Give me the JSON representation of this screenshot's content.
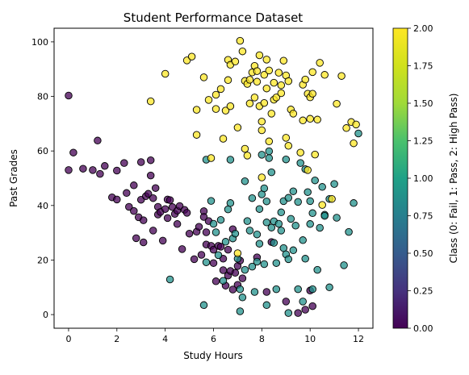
{
  "chart_data": {
    "type": "scatter",
    "title": "Student Performance Dataset",
    "xlabel": "Study Hours",
    "ylabel": "Past Grades",
    "xlim": [
      -0.6,
      12.6
    ],
    "ylim": [
      -5,
      105
    ],
    "xticks": [
      0,
      2,
      4,
      6,
      8,
      10,
      12
    ],
    "yticks": [
      0,
      20,
      40,
      60,
      80,
      100
    ],
    "grid": false,
    "colorbar": {
      "label": "Class (0: Fail, 1: Pass, 2: High Pass)",
      "range": [
        0,
        2
      ],
      "ticks": [
        "0.00",
        "0.25",
        "0.50",
        "0.75",
        "1.00",
        "1.25",
        "1.50",
        "1.75",
        "2.00"
      ]
    },
    "series": [
      {
        "class": 0,
        "color": "#440154",
        "points": [
          [
            0.0,
            80.3
          ],
          [
            0.0,
            53
          ],
          [
            0.2,
            59.4
          ],
          [
            0.6,
            53.5
          ],
          [
            1.0,
            53
          ],
          [
            1.2,
            63.8
          ],
          [
            1.3,
            51.6
          ],
          [
            1.5,
            54.5
          ],
          [
            1.8,
            43
          ],
          [
            2.0,
            52.8
          ],
          [
            2.0,
            42.2
          ],
          [
            2.3,
            55.6
          ],
          [
            2.4,
            44.6
          ],
          [
            2.5,
            39.5
          ],
          [
            2.7,
            47.4
          ],
          [
            2.7,
            38
          ],
          [
            2.8,
            28
          ],
          [
            2.9,
            35.7
          ],
          [
            3.0,
            55.9
          ],
          [
            3.0,
            42.1
          ],
          [
            3.1,
            34.6
          ],
          [
            3.1,
            26.5
          ],
          [
            3.2,
            43.4
          ],
          [
            3.3,
            44.3
          ],
          [
            3.4,
            56.6
          ],
          [
            3.4,
            51
          ],
          [
            3.5,
            42.7
          ],
          [
            3.5,
            30.8
          ],
          [
            3.6,
            46.4
          ],
          [
            3.7,
            39.5
          ],
          [
            3.7,
            36.7
          ],
          [
            3.8,
            37.6
          ],
          [
            3.9,
            27.1
          ],
          [
            4.0,
            38.7
          ],
          [
            4.1,
            42.2
          ],
          [
            4.1,
            35.4
          ],
          [
            4.2,
            42
          ],
          [
            4.3,
            39.4
          ],
          [
            4.4,
            36.9
          ],
          [
            4.5,
            33.2
          ],
          [
            4.5,
            38.1
          ],
          [
            4.6,
            39.8
          ],
          [
            4.7,
            24
          ],
          [
            4.8,
            38.4
          ],
          [
            4.9,
            37.3
          ],
          [
            5.0,
            29.7
          ],
          [
            5.2,
            20.3
          ],
          [
            5.3,
            30.4
          ],
          [
            5.4,
            32.2
          ],
          [
            5.5,
            21.9
          ],
          [
            5.6,
            37.9
          ],
          [
            5.6,
            35.8
          ],
          [
            5.7,
            25.7
          ],
          [
            5.7,
            30.2
          ],
          [
            5.8,
            34.3
          ],
          [
            5.9,
            25.2
          ],
          [
            6.0,
            23.8
          ],
          [
            6.0,
            18.9
          ],
          [
            6.1,
            12.2
          ],
          [
            6.2,
            25.2
          ],
          [
            6.3,
            24.9
          ],
          [
            6.4,
            20.5
          ],
          [
            6.4,
            16.3
          ],
          [
            6.5,
            10.6
          ],
          [
            6.6,
            14.3
          ],
          [
            6.6,
            23.8
          ],
          [
            6.7,
            16
          ],
          [
            6.8,
            31.3
          ],
          [
            6.8,
            9.2
          ],
          [
            6.9,
            15.3
          ],
          [
            7.0,
            10.9
          ],
          [
            7.0,
            17.8
          ],
          [
            7.1,
            19.8
          ],
          [
            7.2,
            13.3
          ],
          [
            7.8,
            21
          ],
          [
            8.2,
            8.3
          ],
          [
            8.4,
            26.6
          ],
          [
            9.0,
            4.8
          ],
          [
            9.5,
            0.6
          ],
          [
            10.0,
            8.8
          ],
          [
            10.1,
            3.1
          ],
          [
            9.8,
            1.8
          ]
        ]
      },
      {
        "class": 1,
        "color": "#21918c",
        "points": [
          [
            4.2,
            12.9
          ],
          [
            5.6,
            3.5
          ],
          [
            5.7,
            56.8
          ],
          [
            5.7,
            19.2
          ],
          [
            5.9,
            41.7
          ],
          [
            6.0,
            33.3
          ],
          [
            6.1,
            30.2
          ],
          [
            6.2,
            21.8
          ],
          [
            6.3,
            34.7
          ],
          [
            6.4,
            12.4
          ],
          [
            6.5,
            26.7
          ],
          [
            6.6,
            38.6
          ],
          [
            6.7,
            40.9
          ],
          [
            6.7,
            56.8
          ],
          [
            6.8,
            27.9
          ],
          [
            6.9,
            29.7
          ],
          [
            7.0,
            20.5
          ],
          [
            7.1,
            1.2
          ],
          [
            7.1,
            9.3
          ],
          [
            7.2,
            6.3
          ],
          [
            7.3,
            48.9
          ],
          [
            7.3,
            16.4
          ],
          [
            7.4,
            34.3
          ],
          [
            7.5,
            30.8
          ],
          [
            7.6,
            42.7
          ],
          [
            7.6,
            17.6
          ],
          [
            7.7,
            8.3
          ],
          [
            7.8,
            29.4
          ],
          [
            7.8,
            19.4
          ],
          [
            7.9,
            26
          ],
          [
            7.9,
            38.7
          ],
          [
            8.0,
            44.1
          ],
          [
            8.0,
            58.6
          ],
          [
            8.1,
            46.3
          ],
          [
            8.1,
            18.5
          ],
          [
            8.2,
            33.8
          ],
          [
            8.2,
            41.5
          ],
          [
            8.2,
            3.5
          ],
          [
            8.3,
            57.4
          ],
          [
            8.3,
            59.9
          ],
          [
            8.4,
            52.2
          ],
          [
            8.4,
            31.9
          ],
          [
            8.5,
            34.2
          ],
          [
            8.5,
            26.3
          ],
          [
            8.6,
            9.3
          ],
          [
            8.6,
            18.9
          ],
          [
            8.7,
            33.3
          ],
          [
            8.8,
            37.5
          ],
          [
            8.8,
            30.8
          ],
          [
            8.9,
            24.4
          ],
          [
            8.9,
            41.6
          ],
          [
            9.0,
            56.9
          ],
          [
            9.0,
            22.1
          ],
          [
            9.1,
            20.3
          ],
          [
            9.1,
            42.8
          ],
          [
            9.1,
            0.6
          ],
          [
            9.2,
            35.1
          ],
          [
            9.3,
            45.2
          ],
          [
            9.3,
            23.6
          ],
          [
            9.4,
            32.6
          ],
          [
            9.5,
            41.3
          ],
          [
            9.5,
            9.3
          ],
          [
            9.6,
            55.6
          ],
          [
            9.7,
            27.3
          ],
          [
            9.7,
            4.8
          ],
          [
            9.8,
            53.3
          ],
          [
            9.8,
            20.5
          ],
          [
            9.9,
            44.9
          ],
          [
            10.0,
            41.6
          ],
          [
            10.0,
            33.2
          ],
          [
            10.1,
            9.3
          ],
          [
            10.1,
            37.2
          ],
          [
            10.2,
            49.2
          ],
          [
            10.3,
            16.4
          ],
          [
            10.4,
            31.8
          ],
          [
            10.5,
            46.8
          ],
          [
            10.6,
            36.6
          ],
          [
            10.6,
            36.2
          ],
          [
            10.8,
            42.4
          ],
          [
            10.8,
            10
          ],
          [
            11.0,
            47.9
          ],
          [
            11.1,
            35.5
          ],
          [
            11.4,
            18.1
          ],
          [
            11.6,
            30.3
          ],
          [
            11.8,
            40.9
          ],
          [
            12.0,
            66.4
          ]
        ]
      },
      {
        "class": 2,
        "color": "#fde725",
        "points": [
          [
            3.4,
            78.2
          ],
          [
            4.0,
            88.3
          ],
          [
            4.9,
            93.2
          ],
          [
            5.1,
            94.6
          ],
          [
            5.3,
            75.1
          ],
          [
            5.3,
            65.9
          ],
          [
            5.6,
            87
          ],
          [
            5.8,
            78.7
          ],
          [
            5.9,
            57.4
          ],
          [
            6.1,
            80.6
          ],
          [
            6.1,
            75.4
          ],
          [
            6.3,
            82.7
          ],
          [
            6.4,
            64.5
          ],
          [
            6.5,
            74.8
          ],
          [
            6.6,
            86
          ],
          [
            6.6,
            93.4
          ],
          [
            6.7,
            91.6
          ],
          [
            6.7,
            76.4
          ],
          [
            6.9,
            92.8
          ],
          [
            7.0,
            22.5
          ],
          [
            7.0,
            68.6
          ],
          [
            7.1,
            100.4
          ],
          [
            7.2,
            96.5
          ],
          [
            7.3,
            85.7
          ],
          [
            7.3,
            60.8
          ],
          [
            7.4,
            84.6
          ],
          [
            7.4,
            58.3
          ],
          [
            7.5,
            86.1
          ],
          [
            7.5,
            77.4
          ],
          [
            7.6,
            88.8
          ],
          [
            7.7,
            91.2
          ],
          [
            7.7,
            79.6
          ],
          [
            7.8,
            89.3
          ],
          [
            7.8,
            85.4
          ],
          [
            7.9,
            95.1
          ],
          [
            7.9,
            76.4
          ],
          [
            8.0,
            67.6
          ],
          [
            8.0,
            70.8
          ],
          [
            8.0,
            50.3
          ],
          [
            8.1,
            77.6
          ],
          [
            8.1,
            87.9
          ],
          [
            8.2,
            82.9
          ],
          [
            8.2,
            93.5
          ],
          [
            8.3,
            89.5
          ],
          [
            8.3,
            63.5
          ],
          [
            8.4,
            73.7
          ],
          [
            8.5,
            78.8
          ],
          [
            8.5,
            85
          ],
          [
            8.6,
            79.6
          ],
          [
            8.7,
            88.7
          ],
          [
            8.8,
            84.1
          ],
          [
            8.8,
            81.2
          ],
          [
            8.9,
            93.1
          ],
          [
            9.0,
            87.7
          ],
          [
            9.0,
            64.8
          ],
          [
            9.1,
            61.9
          ],
          [
            9.1,
            85.6
          ],
          [
            9.2,
            75.2
          ],
          [
            9.3,
            73.7
          ],
          [
            9.6,
            59.4
          ],
          [
            9.7,
            71.2
          ],
          [
            9.7,
            84.3
          ],
          [
            9.8,
            86.2
          ],
          [
            9.9,
            53
          ],
          [
            9.9,
            81
          ],
          [
            10.0,
            71.8
          ],
          [
            10.0,
            79.7
          ],
          [
            10.1,
            88.9
          ],
          [
            10.1,
            81
          ],
          [
            10.2,
            58.7
          ],
          [
            10.3,
            71.5
          ],
          [
            10.4,
            92.3
          ],
          [
            10.5,
            40.2
          ],
          [
            10.6,
            87.9
          ],
          [
            10.9,
            42.4
          ],
          [
            11.1,
            77.3
          ],
          [
            11.3,
            87.5
          ],
          [
            11.5,
            68.4
          ],
          [
            11.7,
            70.6
          ],
          [
            11.8,
            62.8
          ],
          [
            11.9,
            69.7
          ]
        ]
      }
    ]
  }
}
